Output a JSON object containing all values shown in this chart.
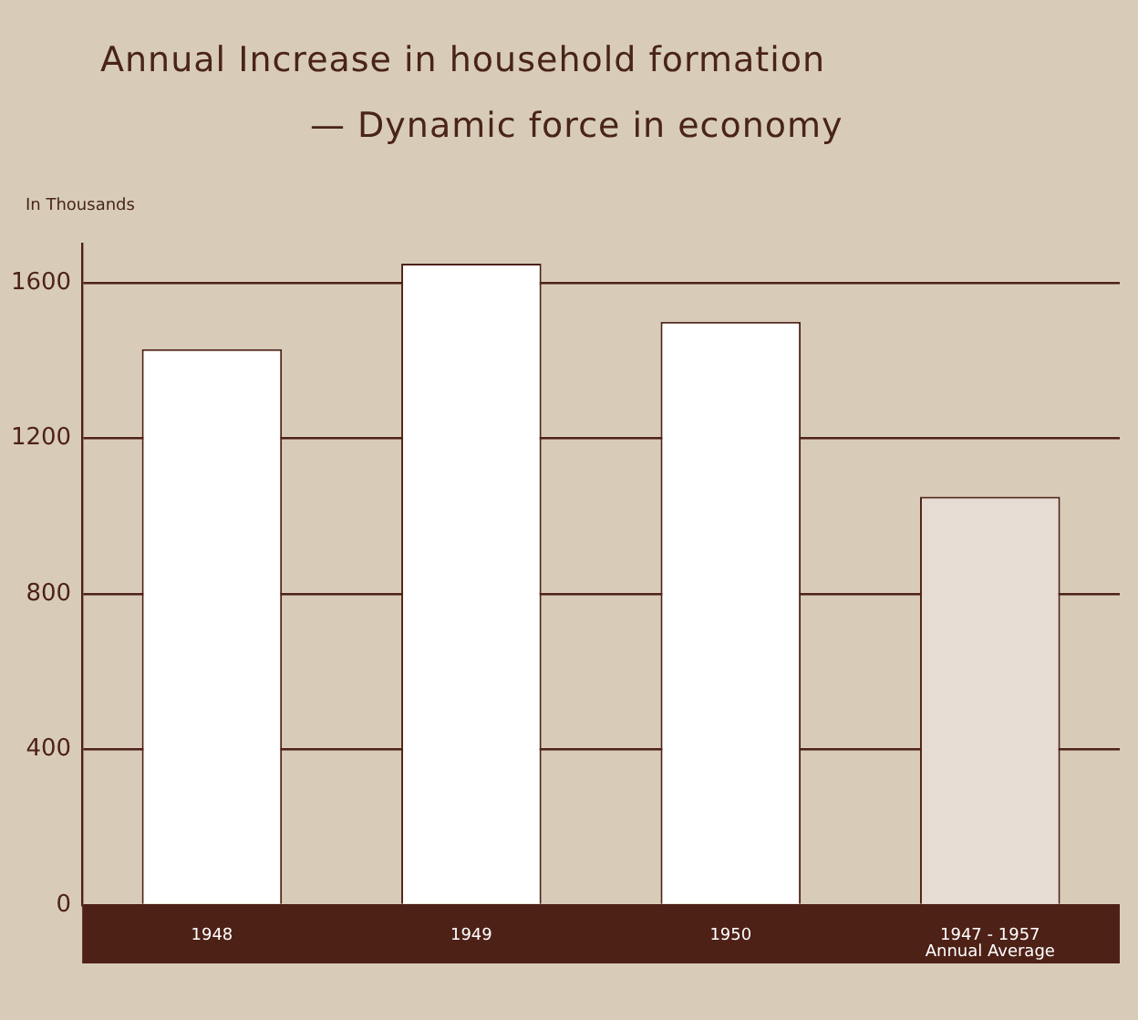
{
  "chart_data": {
    "type": "bar",
    "title": "Annual Increase in household formation",
    "subtitle": "— Dynamic force in economy",
    "ylabel": "In Thousands",
    "categories": [
      "1948",
      "1949",
      "1950",
      "1947 - 1957\nAnnual Average"
    ],
    "values": [
      1430,
      1650,
      1500,
      1050
    ],
    "colors": [
      "#ffffff",
      "#ffffff",
      "#ffffff",
      "#e6dcd4"
    ],
    "ylim": [
      0,
      1700
    ],
    "yticks": [
      0,
      400,
      800,
      1200,
      1600
    ],
    "grid": "y",
    "legend": false
  }
}
